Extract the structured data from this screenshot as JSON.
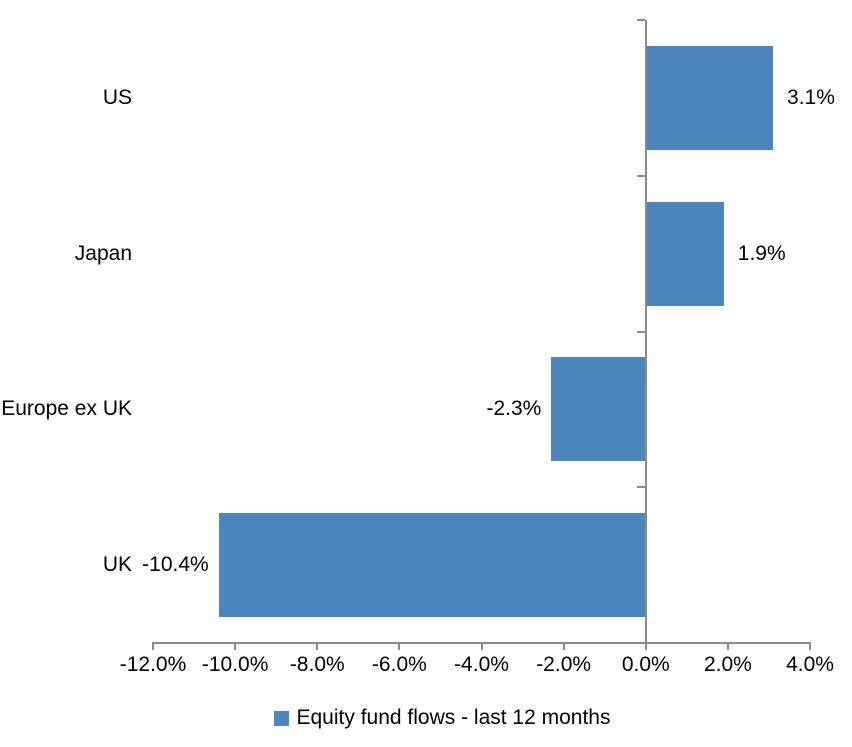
{
  "chart_data": {
    "type": "bar",
    "orientation": "horizontal",
    "title": "",
    "categories": [
      "US",
      "Japan",
      "Europe ex UK",
      "UK"
    ],
    "values": [
      3.1,
      1.9,
      -2.3,
      -10.4
    ],
    "value_labels": [
      "3.1%",
      "1.9%",
      "-2.3%",
      "-10.4%"
    ],
    "series_name": "Equity fund flows - last 12 months",
    "xlim": [
      -12,
      4
    ],
    "x_ticks": [
      -12,
      -10,
      -8,
      -6,
      -4,
      -2,
      0,
      2,
      4
    ],
    "x_tick_labels": [
      "-12.0%",
      "-10.0%",
      "-8.0%",
      "-6.0%",
      "-4.0%",
      "-2.0%",
      "0.0%",
      "2.0%",
      "4.0%"
    ],
    "grid": false,
    "legend_position": "bottom",
    "bar_color": "#4D86BD",
    "axis_color": "#8C8C8C",
    "text_color": "#000000"
  },
  "legend": {
    "label": "Equity fund flows - last 12 months",
    "swatch_color": "#4D86BD"
  }
}
